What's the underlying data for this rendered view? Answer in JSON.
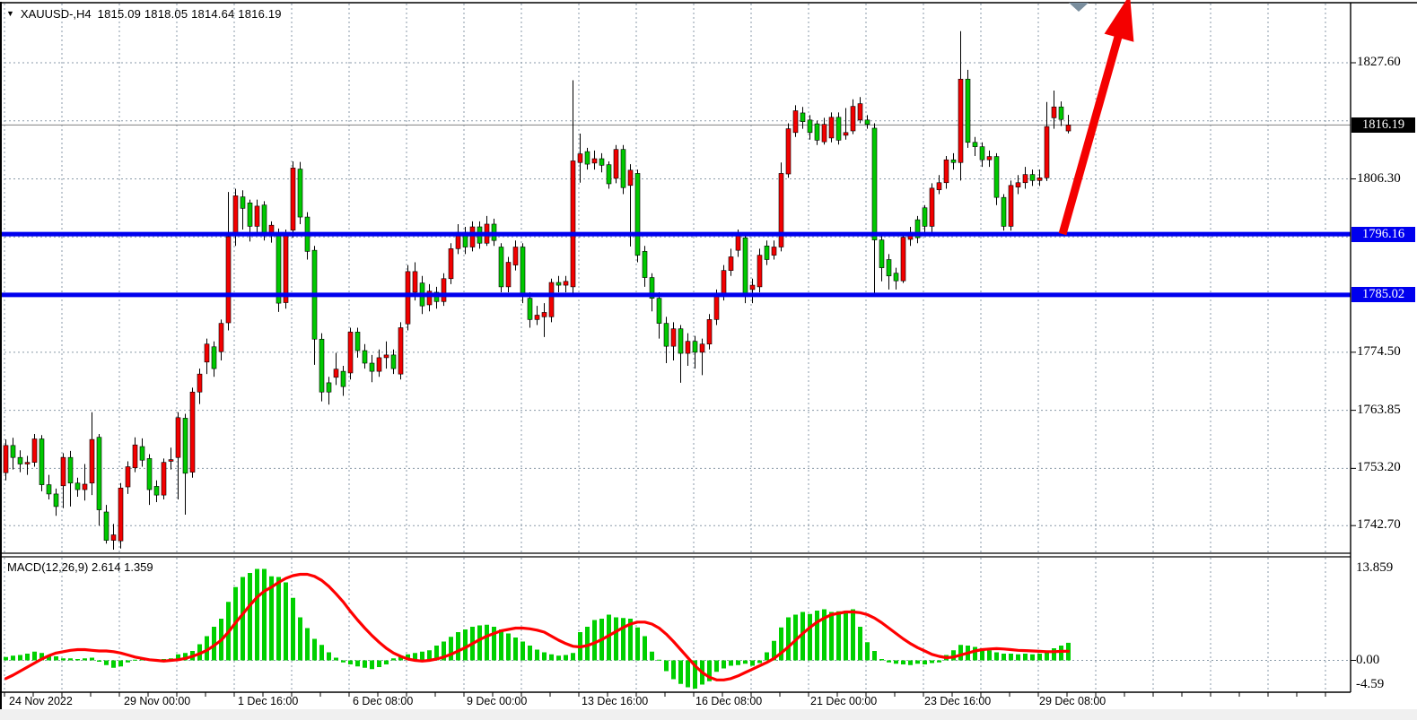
{
  "title": {
    "symbol_timeframe": "XAUUSD-,H4",
    "ohlc_text": "1815.09 1818.05 1814.64 1816.19",
    "open": "1815.09",
    "high": "1818.05",
    "low": "1814.64",
    "close": "1816.19"
  },
  "price_axis": {
    "tick_labels": [
      "1827.60",
      "1806.30",
      "1774.50",
      "1763.85",
      "1753.20",
      "1742.70"
    ],
    "current_price_tag": "1816.19"
  },
  "hlines": [
    {
      "name": "resistance",
      "price": 1796.16,
      "label": "1796.16",
      "color": "#0000ee"
    },
    {
      "name": "support",
      "price": 1785.02,
      "label": "1785.02",
      "color": "#0000ee"
    }
  ],
  "macd": {
    "name_label": "MACD(12,26,9)",
    "main_value": "2.614",
    "signal_value": "1.359",
    "axis_labels": [
      "13.859",
      "0.00",
      "-4.59"
    ]
  },
  "time_axis": {
    "labels": [
      "24 Nov 2022",
      "29 Nov 00:00",
      "1 Dec 16:00",
      "6 Dec 08:00",
      "9 Dec 00:00",
      "13 Dec 16:00",
      "16 Dec 08:00",
      "21 Dec 00:00",
      "23 Dec 16:00",
      "29 Dec 08:00"
    ]
  },
  "colors": {
    "up_candle": "#f20000",
    "down_candle": "#00c800",
    "wick": "#000000",
    "grid": "#8a9aa8",
    "hline_blue": "#0000ee",
    "current_price_line": "#808080",
    "macd_histogram": "#00d000",
    "macd_signal": "#ff0000",
    "arrow": "#f40000",
    "end_marker": "#7a8e9e"
  },
  "annotations": {
    "trend_arrow": {
      "type": "arrow-up",
      "from_price": 1796.16,
      "note": "thick red arrow from resistance line up past chart top"
    },
    "chart_end_marker": {
      "type": "triangle-down",
      "note": "gray marker above last bars"
    }
  },
  "chart_data": {
    "type": "candlestick+macd",
    "symbol": "XAUUSD-",
    "timeframe": "H4",
    "y_ticks": [
      1827.6,
      1816.95,
      1806.3,
      1795.65,
      1785.0,
      1774.5,
      1763.85,
      1753.2,
      1742.7
    ],
    "visible_y_tick_labels": [
      1827.6,
      1806.3,
      1774.5,
      1763.85,
      1753.2,
      1742.7
    ],
    "macd_y_ticks": [
      13.859,
      0.0,
      -4.59
    ],
    "current_price": 1816.19,
    "grid": "dashed",
    "candles_ohlc": [
      [
        1752.4,
        1758.5,
        1751.0,
        1757.4
      ],
      [
        1757.4,
        1758.8,
        1753.0,
        1755.2
      ],
      [
        1755.2,
        1756.5,
        1752.5,
        1754.0
      ],
      [
        1754.0,
        1755.5,
        1752.0,
        1754.3
      ],
      [
        1754.3,
        1759.5,
        1753.5,
        1758.6
      ],
      [
        1758.6,
        1759.3,
        1749.0,
        1750.2
      ],
      [
        1750.2,
        1752.0,
        1747.5,
        1748.5
      ],
      [
        1748.5,
        1749.5,
        1744.5,
        1746.2
      ],
      [
        1750.0,
        1756.0,
        1745.9,
        1755.2
      ],
      [
        1755.2,
        1756.4,
        1746.2,
        1750.5
      ],
      [
        1750.5,
        1751.5,
        1748.0,
        1749.3
      ],
      [
        1749.3,
        1754.0,
        1747.3,
        1750.3
      ],
      [
        1750.5,
        1763.5,
        1748.3,
        1758.5
      ],
      [
        1758.9,
        1759.5,
        1742.7,
        1745.6
      ],
      [
        1745.2,
        1746.5,
        1739.4,
        1740.0
      ],
      [
        1740.0,
        1743.0,
        1738.3,
        1741.0
      ],
      [
        1739.9,
        1750.5,
        1738.5,
        1749.6
      ],
      [
        1749.8,
        1754.5,
        1748.5,
        1753.5
      ],
      [
        1753.3,
        1758.9,
        1752.5,
        1757.5
      ],
      [
        1757.2,
        1758.7,
        1753.5,
        1754.7
      ],
      [
        1755.0,
        1755.8,
        1746.5,
        1749.3
      ],
      [
        1749.9,
        1751.0,
        1747.0,
        1748.3
      ],
      [
        1748.3,
        1755.0,
        1747.5,
        1754.3
      ],
      [
        1754.5,
        1757.0,
        1753.0,
        1754.8
      ],
      [
        1755.2,
        1763.5,
        1747.5,
        1762.5
      ],
      [
        1762.4,
        1763.2,
        1744.7,
        1752.3
      ],
      [
        1752.5,
        1768.0,
        1751.5,
        1767.2
      ],
      [
        1767.2,
        1771.5,
        1765.0,
        1770.5
      ],
      [
        1772.7,
        1777.0,
        1770.5,
        1776.0
      ],
      [
        1775.5,
        1776.5,
        1770.0,
        1771.5
      ],
      [
        1774.6,
        1780.5,
        1773.0,
        1779.8
      ],
      [
        1779.9,
        1803.9,
        1778.5,
        1795.7
      ],
      [
        1796.1,
        1804.5,
        1794.0,
        1803.2
      ],
      [
        1803.0,
        1804.2,
        1797.0,
        1800.9
      ],
      [
        1801.9,
        1802.5,
        1794.8,
        1797.6
      ],
      [
        1797.6,
        1802.5,
        1796.0,
        1801.3
      ],
      [
        1801.5,
        1802.2,
        1795.0,
        1796.2
      ],
      [
        1796.2,
        1798.5,
        1794.6,
        1797.8
      ],
      [
        1796.3,
        1797.2,
        1781.9,
        1783.5
      ],
      [
        1783.6,
        1797.0,
        1782.5,
        1796.2
      ],
      [
        1796.9,
        1809.5,
        1795.5,
        1808.3
      ],
      [
        1808.1,
        1809.4,
        1798.0,
        1799.3
      ],
      [
        1799.3,
        1800.2,
        1791.5,
        1793.0
      ],
      [
        1793.2,
        1794.0,
        1772.2,
        1776.9
      ],
      [
        1776.9,
        1778.0,
        1765.5,
        1767.2
      ],
      [
        1768.9,
        1770.0,
        1764.9,
        1767.2
      ],
      [
        1769.9,
        1774.4,
        1768.5,
        1771.4
      ],
      [
        1771.0,
        1772.0,
        1766.5,
        1768.2
      ],
      [
        1770.7,
        1779.0,
        1769.5,
        1778.2
      ],
      [
        1778.2,
        1779.0,
        1773.5,
        1774.8
      ],
      [
        1774.8,
        1776.0,
        1771.5,
        1772.5
      ],
      [
        1772.5,
        1774.0,
        1769.0,
        1771.0
      ],
      [
        1771.0,
        1775.0,
        1770.0,
        1773.5
      ],
      [
        1773.5,
        1776.5,
        1771.5,
        1774.0
      ],
      [
        1774.0,
        1775.0,
        1770.5,
        1771.5
      ],
      [
        1770.5,
        1780.0,
        1769.5,
        1779.0
      ],
      [
        1779.7,
        1790.5,
        1778.5,
        1789.3
      ],
      [
        1785.5,
        1791.0,
        1784.0,
        1789.3
      ],
      [
        1787.2,
        1788.5,
        1781.5,
        1783.0
      ],
      [
        1783.2,
        1787.0,
        1782.0,
        1785.7
      ],
      [
        1785.5,
        1786.5,
        1782.5,
        1783.8
      ],
      [
        1783.8,
        1789.0,
        1783.0,
        1788.0
      ],
      [
        1788.0,
        1794.5,
        1787.0,
        1793.5
      ],
      [
        1793.5,
        1798.0,
        1792.5,
        1796.5
      ],
      [
        1796.5,
        1797.5,
        1792.5,
        1793.8
      ],
      [
        1793.8,
        1798.5,
        1793.0,
        1797.5
      ],
      [
        1797.5,
        1798.5,
        1793.5,
        1794.5
      ],
      [
        1794.5,
        1799.5,
        1794.0,
        1798.0
      ],
      [
        1798.0,
        1799.0,
        1794.0,
        1795.0
      ],
      [
        1793.8,
        1794.5,
        1785.5,
        1786.5
      ],
      [
        1786.5,
        1792.0,
        1785.5,
        1791.0
      ],
      [
        1790.5,
        1795.0,
        1789.5,
        1793.8
      ],
      [
        1793.8,
        1794.5,
        1783.5,
        1784.9
      ],
      [
        1784.4,
        1785.5,
        1779.0,
        1780.5
      ],
      [
        1780.5,
        1783.0,
        1779.5,
        1781.3
      ],
      [
        1781.0,
        1783.5,
        1777.3,
        1781.8
      ],
      [
        1781.0,
        1788.0,
        1780.0,
        1787.3
      ],
      [
        1787.3,
        1788.5,
        1785.5,
        1786.8
      ],
      [
        1786.8,
        1788.5,
        1785.5,
        1787.5
      ],
      [
        1786.5,
        1824.4,
        1784.9,
        1809.6
      ],
      [
        1809.3,
        1814.6,
        1805.6,
        1810.9
      ],
      [
        1811.3,
        1812.0,
        1808.0,
        1809.0
      ],
      [
        1809.2,
        1811.5,
        1808.0,
        1810.0
      ],
      [
        1810.0,
        1811.0,
        1807.5,
        1808.8
      ],
      [
        1808.9,
        1809.5,
        1804.5,
        1805.4
      ],
      [
        1806.4,
        1812.5,
        1805.5,
        1811.7
      ],
      [
        1811.7,
        1812.5,
        1803.5,
        1804.7
      ],
      [
        1805.1,
        1809.0,
        1793.9,
        1807.9
      ],
      [
        1807.3,
        1808.0,
        1791.0,
        1792.3
      ],
      [
        1793.0,
        1794.0,
        1786.5,
        1788.2
      ],
      [
        1788.2,
        1789.0,
        1782.0,
        1784.4
      ],
      [
        1784.4,
        1785.5,
        1777.0,
        1779.8
      ],
      [
        1779.8,
        1781.0,
        1772.5,
        1775.6
      ],
      [
        1775.6,
        1780.0,
        1773.0,
        1778.8
      ],
      [
        1778.8,
        1779.5,
        1768.9,
        1774.3
      ],
      [
        1774.3,
        1778.0,
        1772.0,
        1776.5
      ],
      [
        1776.5,
        1777.5,
        1771.5,
        1774.5
      ],
      [
        1774.5,
        1777.0,
        1770.3,
        1776.0
      ],
      [
        1776.0,
        1781.5,
        1775.0,
        1780.5
      ],
      [
        1780.5,
        1786.0,
        1779.5,
        1785.0
      ],
      [
        1785.0,
        1790.5,
        1784.0,
        1789.5
      ],
      [
        1789.5,
        1793.5,
        1788.5,
        1792.0
      ],
      [
        1793.2,
        1797.0,
        1792.0,
        1796.0
      ],
      [
        1795.5,
        1796.5,
        1783.5,
        1784.9
      ],
      [
        1786.0,
        1788.0,
        1783.5,
        1786.8
      ],
      [
        1786.5,
        1793.5,
        1785.5,
        1792.3
      ],
      [
        1794.0,
        1795.0,
        1790.5,
        1791.5
      ],
      [
        1792.3,
        1795.0,
        1791.5,
        1793.8
      ],
      [
        1793.8,
        1809.3,
        1793.0,
        1807.3
      ],
      [
        1807.2,
        1816.5,
        1806.5,
        1815.5
      ],
      [
        1814.8,
        1819.8,
        1814.0,
        1818.8
      ],
      [
        1818.4,
        1819.5,
        1815.5,
        1816.8
      ],
      [
        1817.1,
        1818.0,
        1813.5,
        1814.8
      ],
      [
        1816.4,
        1817.0,
        1812.5,
        1813.4
      ],
      [
        1813.1,
        1817.5,
        1812.6,
        1816.3
      ],
      [
        1813.8,
        1818.5,
        1813.0,
        1817.6
      ],
      [
        1817.6,
        1818.5,
        1812.6,
        1813.4
      ],
      [
        1814.3,
        1819.3,
        1813.5,
        1814.8
      ],
      [
        1815.1,
        1820.9,
        1814.5,
        1819.6
      ],
      [
        1817.1,
        1821.3,
        1816.5,
        1820.1
      ],
      [
        1817.1,
        1818.0,
        1815.5,
        1816.3
      ],
      [
        1815.6,
        1816.5,
        1784.7,
        1795.1
      ],
      [
        1795.1,
        1796.0,
        1787.5,
        1790.0
      ],
      [
        1791.5,
        1792.5,
        1786.0,
        1788.5
      ],
      [
        1789.0,
        1790.0,
        1786.0,
        1787.6
      ],
      [
        1787.6,
        1796.5,
        1787.2,
        1795.6
      ],
      [
        1795.2,
        1797.5,
        1794.0,
        1796.5
      ],
      [
        1798.8,
        1799.5,
        1794.5,
        1795.5
      ],
      [
        1801.0,
        1801.5,
        1796.5,
        1797.6
      ],
      [
        1797.6,
        1805.5,
        1796.5,
        1804.6
      ],
      [
        1804.3,
        1807.0,
        1803.5,
        1805.6
      ],
      [
        1805.6,
        1810.5,
        1804.5,
        1809.8
      ],
      [
        1809.8,
        1811.0,
        1808.0,
        1809.3
      ],
      [
        1809.3,
        1833.4,
        1806.0,
        1824.6
      ],
      [
        1824.6,
        1826.3,
        1812.0,
        1813.0
      ],
      [
        1813.0,
        1814.0,
        1810.5,
        1812.2
      ],
      [
        1812.2,
        1813.0,
        1808.5,
        1809.8
      ],
      [
        1809.8,
        1811.5,
        1808.5,
        1810.4
      ],
      [
        1810.4,
        1811.0,
        1801.5,
        1802.9
      ],
      [
        1802.9,
        1803.5,
        1796.8,
        1797.6
      ],
      [
        1797.6,
        1806.0,
        1796.8,
        1805.1
      ],
      [
        1804.8,
        1807.0,
        1803.5,
        1805.6
      ],
      [
        1805.6,
        1808.5,
        1804.5,
        1807.1
      ],
      [
        1807.1,
        1808.0,
        1805.0,
        1806.0
      ],
      [
        1806.0,
        1808.0,
        1805.0,
        1806.5
      ],
      [
        1806.5,
        1820.4,
        1805.9,
        1815.9
      ],
      [
        1817.5,
        1822.5,
        1815.5,
        1819.5
      ],
      [
        1819.5,
        1820.5,
        1816.0,
        1817.2
      ],
      [
        1815.09,
        1818.05,
        1814.64,
        1816.19
      ]
    ],
    "macd_histogram": [
      0.5,
      0.7,
      0.8,
      1.0,
      1.3,
      1.1,
      0.8,
      0.6,
      0.3,
      0.3,
      0.2,
      0.3,
      0.4,
      -0.2,
      -0.7,
      -1.1,
      -0.9,
      -0.3,
      0.1,
      0.2,
      0.2,
      0.1,
      0.2,
      0.3,
      0.9,
      1.1,
      1.4,
      2.4,
      3.6,
      5.0,
      6.2,
      8.7,
      10.9,
      12.4,
      13.0,
      13.6,
      13.6,
      12.5,
      12.4,
      11.6,
      9.3,
      6.4,
      4.8,
      3.2,
      2.3,
      1.2,
      0.4,
      -0.3,
      -0.6,
      -0.9,
      -1.1,
      -1.3,
      -1.0,
      -0.6,
      0.3,
      0.6,
      0.9,
      1.1,
      1.3,
      1.5,
      2.2,
      2.8,
      3.5,
      4.2,
      4.6,
      5.0,
      5.2,
      5.3,
      5.0,
      4.6,
      4.0,
      3.4,
      2.8,
      2.2,
      1.6,
      1.2,
      0.9,
      0.7,
      0.8,
      1.1,
      4.2,
      5.0,
      6.0,
      6.2,
      6.8,
      6.4,
      6.3,
      6.2,
      4.9,
      3.6,
      1.3,
      0.1,
      -1.6,
      -2.8,
      -3.5,
      -4.0,
      -4.2,
      -3.6,
      -3.1,
      -1.7,
      -1.2,
      -0.8,
      -0.7,
      -0.5,
      -0.8,
      -0.4,
      1.2,
      2.9,
      4.9,
      6.4,
      6.8,
      7.2,
      6.9,
      7.4,
      7.6,
      7.2,
      7.3,
      7.4,
      7.6,
      5.0,
      2.7,
      1.4,
      0.2,
      -0.3,
      -0.5,
      -0.6,
      -0.7,
      -0.5,
      -0.6,
      -0.4,
      -0.3,
      0.8,
      1.5,
      2.3,
      2.2,
      2.0,
      1.8,
      1.5,
      1.2,
      1.0,
      1.0,
      0.9,
      1.0,
      0.9,
      1.0,
      1.3,
      1.8,
      2.2,
      2.614
    ],
    "macd_signal": [
      -2.7,
      -2.2,
      -1.6,
      -1.0,
      -0.4,
      0.2,
      0.7,
      1.1,
      1.3,
      1.5,
      1.6,
      1.6,
      1.5,
      1.4,
      1.4,
      1.3,
      1.1,
      0.8,
      0.5,
      0.3,
      0.1,
      0.0,
      -0.1,
      0.0,
      0.1,
      0.3,
      0.6,
      1.0,
      1.5,
      2.2,
      3.0,
      4.2,
      5.6,
      6.9,
      8.2,
      9.4,
      10.3,
      10.9,
      11.6,
      12.2,
      12.6,
      12.8,
      12.8,
      12.5,
      11.9,
      11.0,
      9.9,
      8.7,
      7.3,
      6.0,
      4.8,
      3.7,
      2.7,
      1.8,
      1.1,
      0.6,
      0.2,
      0.0,
      -0.1,
      0.0,
      0.2,
      0.5,
      0.9,
      1.4,
      1.9,
      2.5,
      3.1,
      3.6,
      4.0,
      4.4,
      4.6,
      4.8,
      4.8,
      4.7,
      4.5,
      4.2,
      3.6,
      3.0,
      2.5,
      2.1,
      2.0,
      2.2,
      2.6,
      3.1,
      3.7,
      4.3,
      4.9,
      5.4,
      5.7,
      5.7,
      5.4,
      4.8,
      3.9,
      2.8,
      1.6,
      0.4,
      -0.8,
      -1.8,
      -2.5,
      -2.9,
      -2.9,
      -2.7,
      -2.3,
      -1.8,
      -1.3,
      -0.8,
      -0.3,
      0.3,
      1.1,
      2.0,
      3.0,
      4.0,
      4.9,
      5.7,
      6.3,
      6.8,
      7.0,
      7.2,
      7.2,
      7.1,
      6.8,
      6.3,
      5.6,
      4.8,
      4.0,
      3.2,
      2.5,
      1.9,
      1.4,
      0.9,
      0.6,
      0.4,
      0.5,
      0.8,
      1.1,
      1.4,
      1.6,
      1.7,
      1.75,
      1.7,
      1.6,
      1.5,
      1.45,
      1.4,
      1.35,
      1.3,
      1.3,
      1.35,
      1.359
    ],
    "title": "XAUUSD-,H4 1815.09 1818.05 1814.64 1816.19",
    "indicator_label": "MACD(12,26,9) 2.614 1.359",
    "x_labels": [
      "24 Nov 2022",
      "29 Nov 00:00",
      "1 Dec 16:00",
      "6 Dec 08:00",
      "9 Dec 00:00",
      "13 Dec 16:00",
      "16 Dec 08:00",
      "21 Dec 00:00",
      "23 Dec 16:00",
      "29 Dec 08:00"
    ],
    "legend_position": "none",
    "hlines": [
      1796.16,
      1785.02
    ],
    "ylim_main": [
      1736.5,
      1838.5
    ],
    "ylim_macd": [
      -4.73,
      15.4
    ]
  }
}
